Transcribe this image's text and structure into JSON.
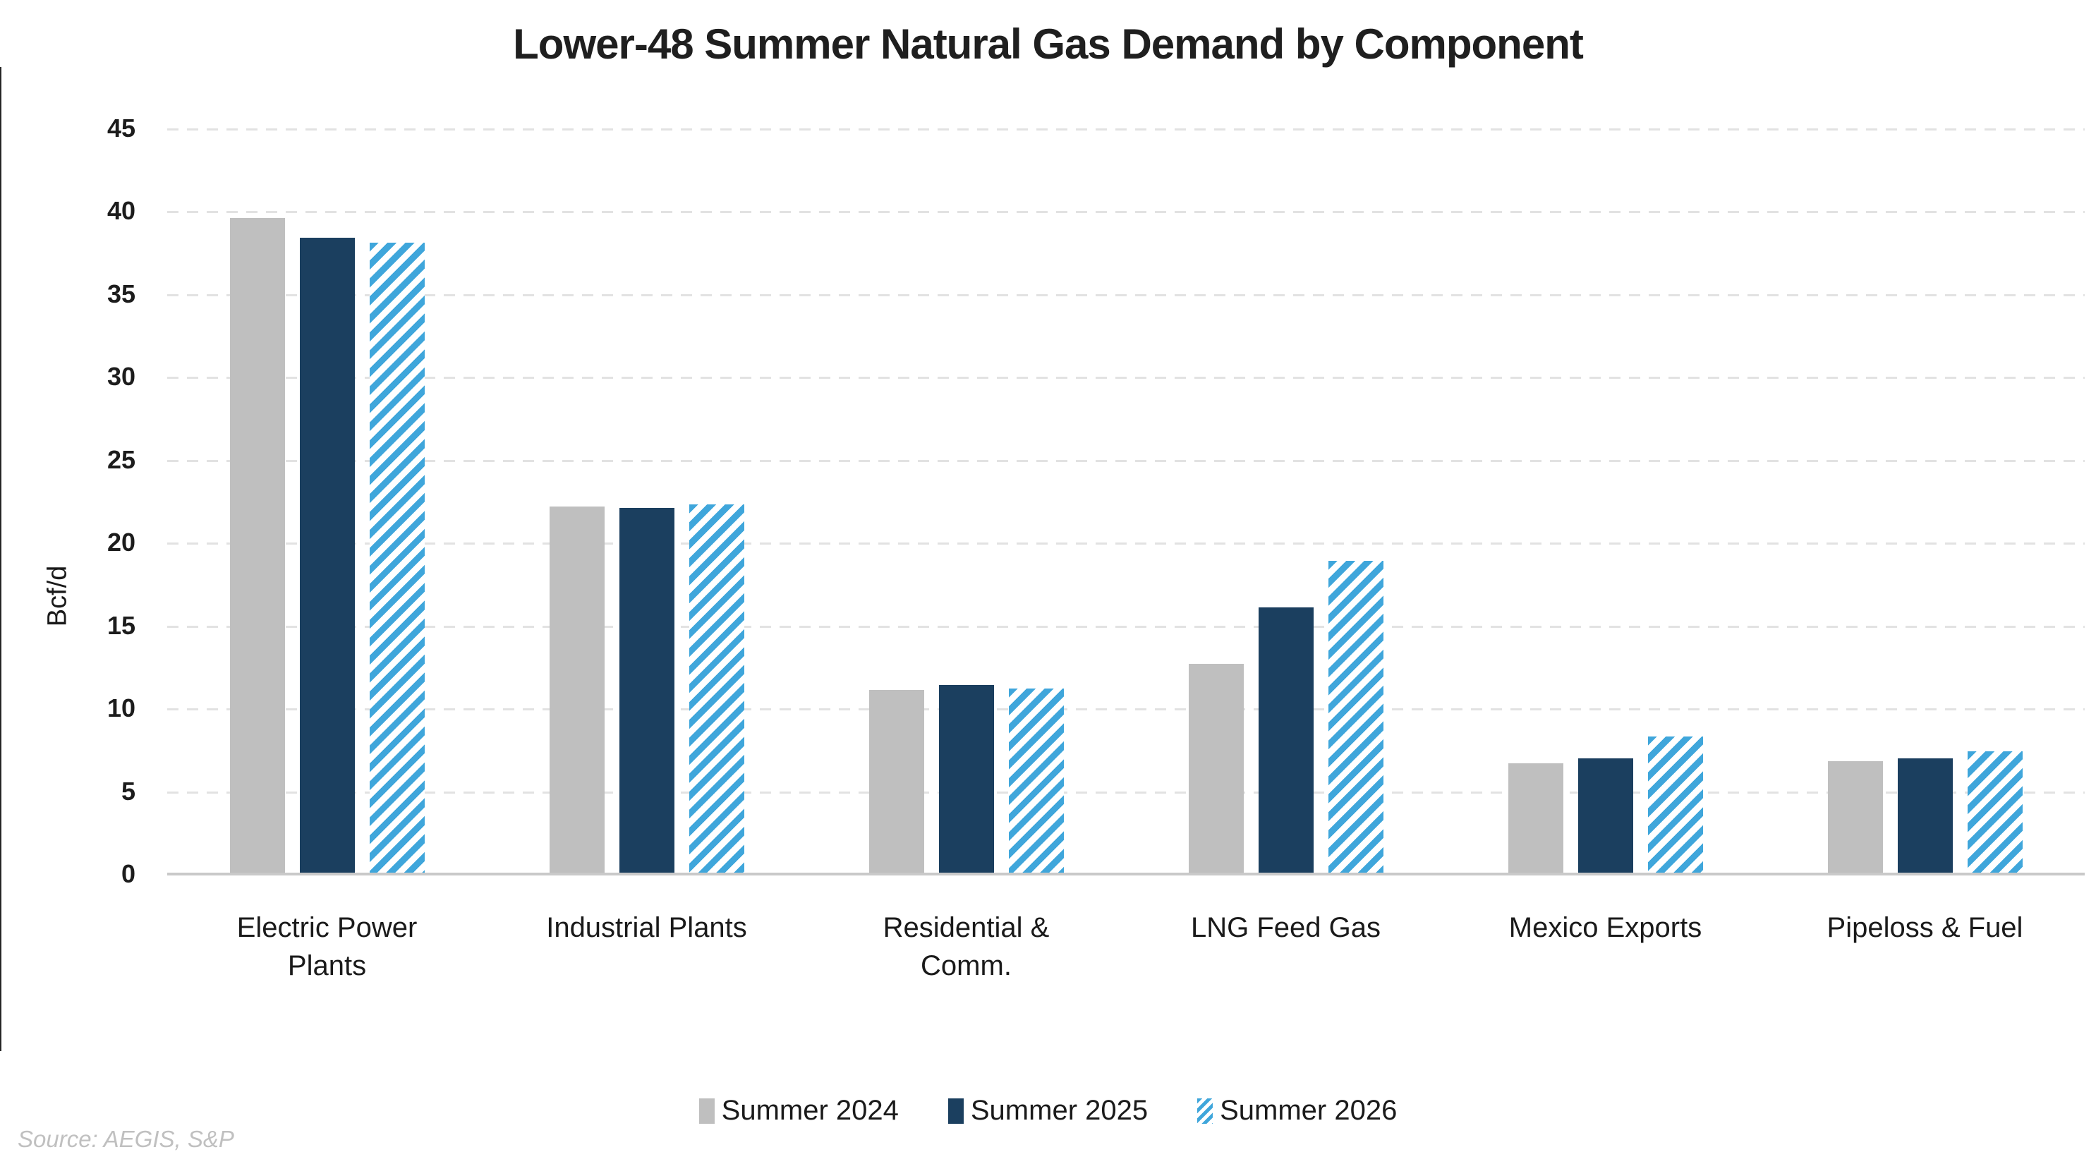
{
  "chart_data": {
    "type": "bar",
    "title": "Lower-48 Summer Natural Gas Demand by Component",
    "ylabel": "Bcf/d",
    "ylim": [
      0,
      45
    ],
    "ytick_step": 5,
    "grid": "horizontal-dashed",
    "legend_position": "bottom-center",
    "categories": [
      "Electric Power\nPlants",
      "Industrial Plants",
      "Residential &\nComm.",
      "LNG Feed Gas",
      "Mexico Exports",
      "Pipeloss & Fuel"
    ],
    "series": [
      {
        "name": "Summer 2024",
        "style": "solid",
        "color": "#bfbfbf",
        "values": [
          39.6,
          22.2,
          11.1,
          12.7,
          6.7,
          6.8
        ]
      },
      {
        "name": "Summer 2025",
        "style": "solid",
        "color": "#1b3f5f",
        "values": [
          38.4,
          22.1,
          11.4,
          16.1,
          7.0,
          7.0
        ]
      },
      {
        "name": "Summer 2026",
        "style": "diagonal-hatch",
        "color": "#3fa6db",
        "values": [
          38.1,
          22.3,
          11.2,
          18.9,
          8.3,
          7.4
        ]
      }
    ]
  },
  "source": {
    "text": "Source: AEGIS, S&P"
  }
}
